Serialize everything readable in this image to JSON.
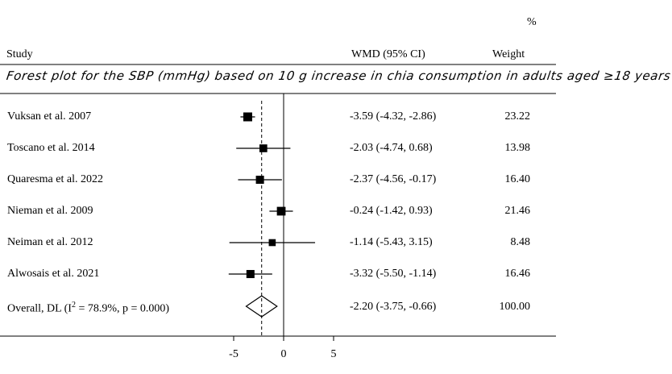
{
  "chart_data": {
    "type": "forest",
    "title": "Forest plot for the SBP (mmHg) based on 10 g increase in chia consumption in adults aged ≥18 years",
    "header": {
      "percent_symbol": "%",
      "study": "Study",
      "effect": "WMD (95% CI)",
      "weight": "Weight"
    },
    "studies": [
      {
        "name": "Vuksan et al. 2007",
        "est": -3.59,
        "lo": -4.32,
        "hi": -2.86,
        "ci_text": "-3.59 (-4.32, -2.86)",
        "weight": 23.22,
        "weight_text": "23.22"
      },
      {
        "name": "Toscano et al. 2014",
        "est": -2.03,
        "lo": -4.74,
        "hi": 0.68,
        "ci_text": "-2.03 (-4.74, 0.68)",
        "weight": 13.98,
        "weight_text": "13.98"
      },
      {
        "name": "Quaresma et al. 2022",
        "est": -2.37,
        "lo": -4.56,
        "hi": -0.17,
        "ci_text": "-2.37 (-4.56, -0.17)",
        "weight": 16.4,
        "weight_text": "16.40"
      },
      {
        "name": "Nieman et al. 2009",
        "est": -0.24,
        "lo": -1.42,
        "hi": 0.93,
        "ci_text": "-0.24 (-1.42, 0.93)",
        "weight": 21.46,
        "weight_text": "21.46"
      },
      {
        "name": "Neiman et al. 2012",
        "est": -1.14,
        "lo": -5.43,
        "hi": 3.15,
        "ci_text": "-1.14 (-5.43, 3.15)",
        "weight": 8.48,
        "weight_text": "8.48"
      },
      {
        "name": "Alwosais et al. 2021",
        "est": -3.32,
        "lo": -5.5,
        "hi": -1.14,
        "ci_text": "-3.32 (-5.50, -1.14)",
        "weight": 16.46,
        "weight_text": "16.46"
      }
    ],
    "overall": {
      "label_prefix": "Overall, DL (I",
      "label_sup": "2",
      "label_suffix": " = 78.9%, p = 0.000)",
      "est": -2.2,
      "lo": -3.75,
      "hi": -0.66,
      "ci_text": "-2.20 (-3.75, -0.66)",
      "weight_text": "100.00"
    },
    "x_ticks": [
      -5,
      0,
      5
    ],
    "x_tick_labels": [
      "-5",
      "0",
      "5"
    ],
    "x_range": [
      -6,
      6
    ],
    "null_line": 0,
    "colors": {
      "marker": "#000000",
      "line": "#000000"
    }
  }
}
